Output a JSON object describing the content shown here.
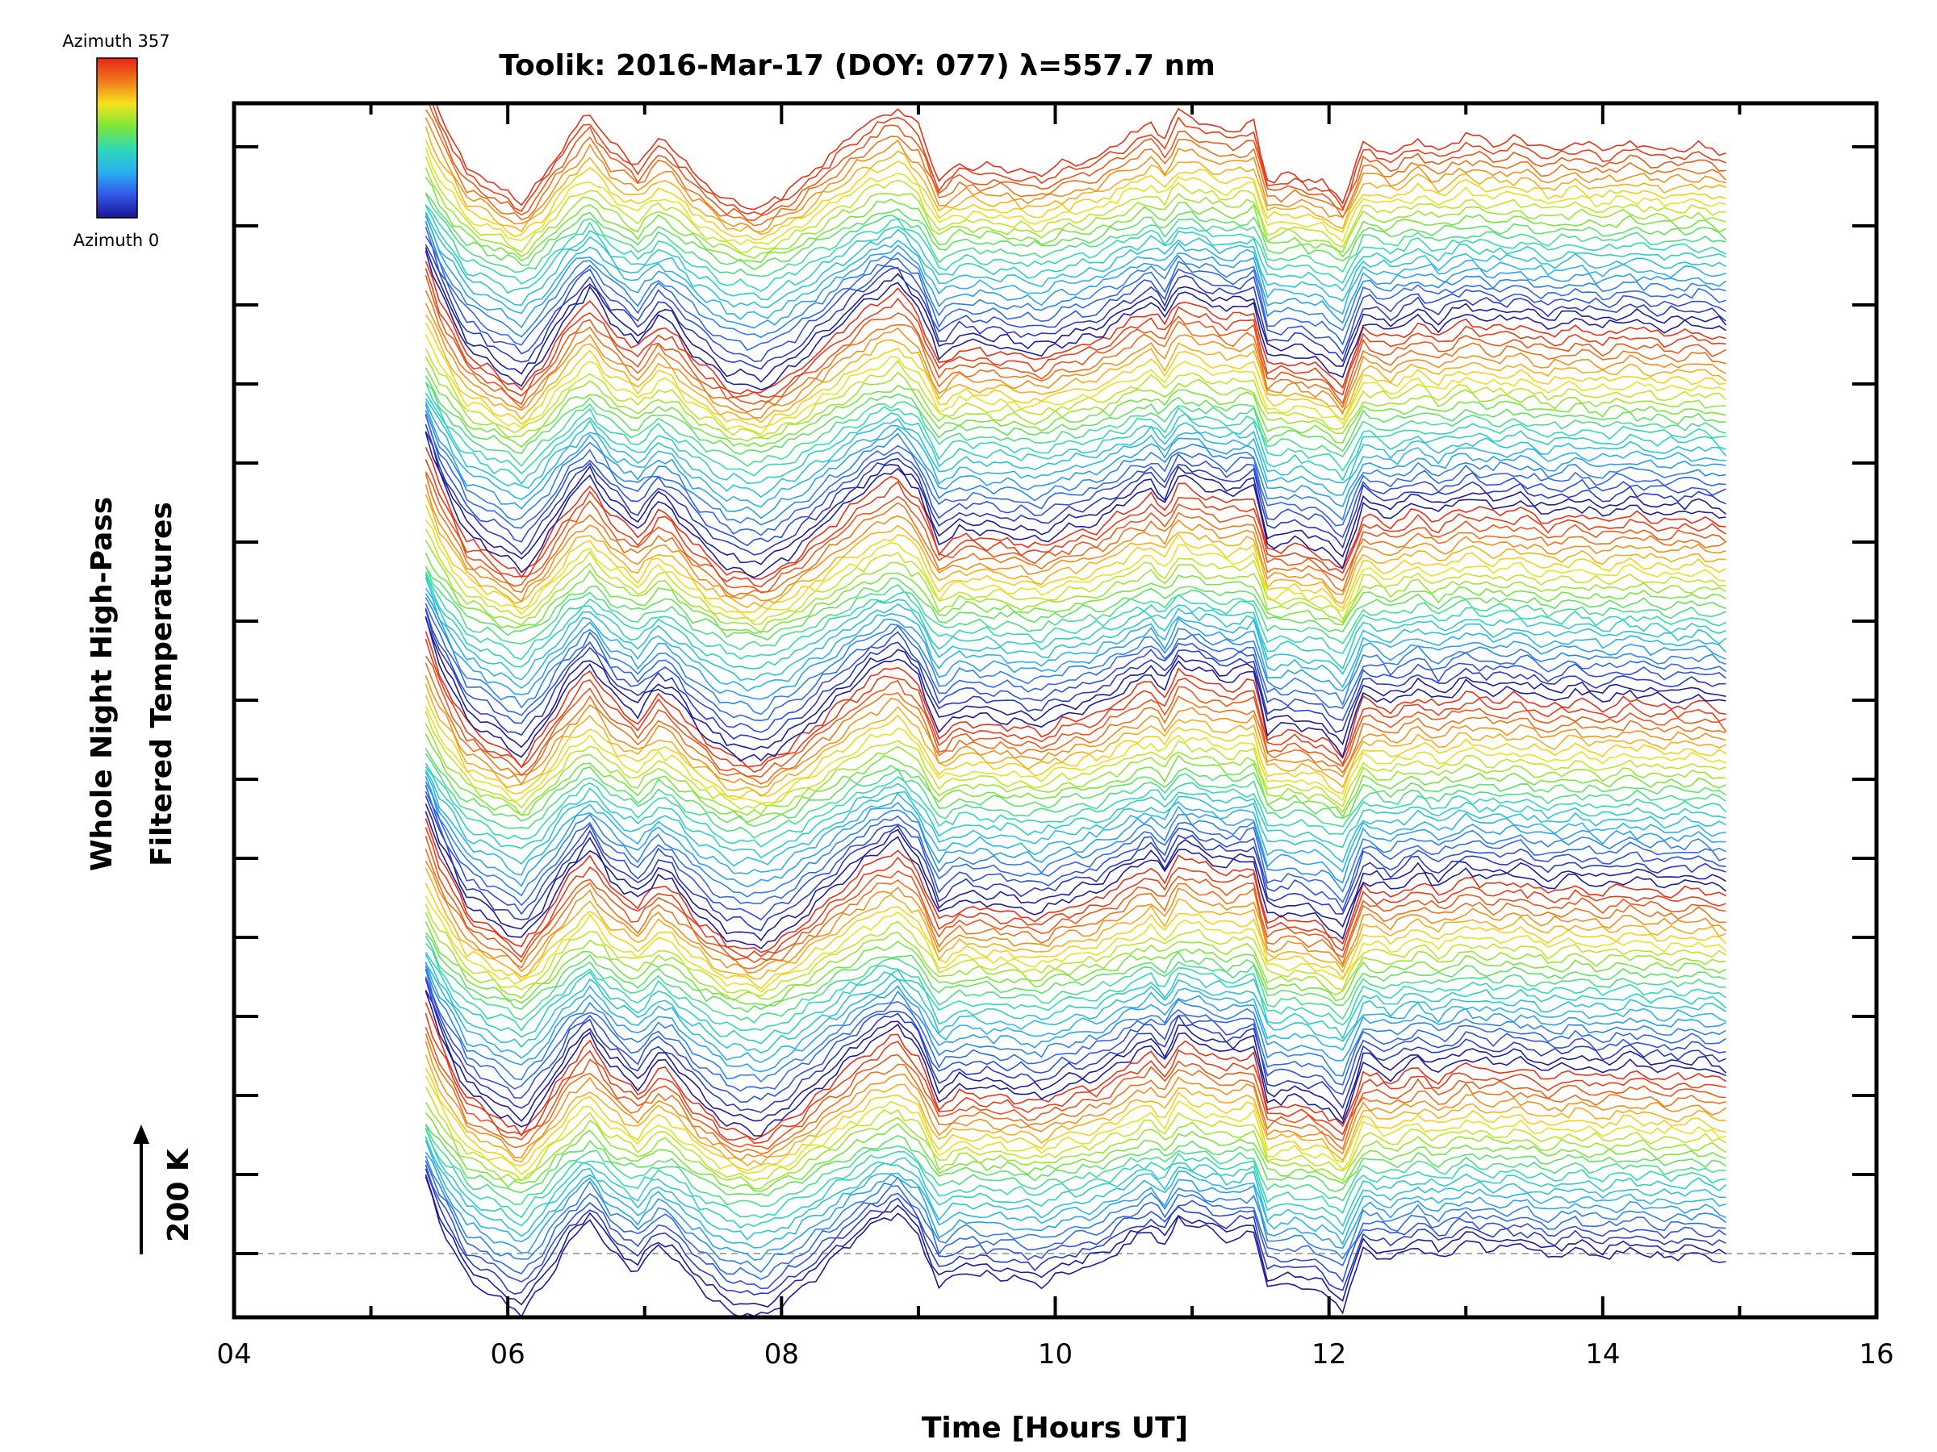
{
  "chart_data": {
    "type": "line",
    "title": "Toolik: 2016-Mar-17 (DOY: 077) λ=557.7 nm",
    "xlabel": "Time [Hours UT]",
    "ylabel_line1": "Whole Night High-Pass",
    "ylabel_line2": "Filtered Temperatures",
    "xlim": [
      4,
      16
    ],
    "x_ticks": [
      "04",
      "06",
      "08",
      "10",
      "12",
      "14",
      "16"
    ],
    "scale_bar_label": "200 K",
    "scale_bar_kelvin": 200,
    "colorbar": {
      "top_label": "Azimuth 357",
      "bottom_label": "Azimuth 0",
      "colors": [
        "#e8241a",
        "#f07a1a",
        "#f6e21e",
        "#7ce63a",
        "#2ed9b8",
        "#28b0f0",
        "#3256e8",
        "#1c1490"
      ]
    },
    "time_range_hours": [
      5.4,
      14.9
    ],
    "stacked_groups": 6,
    "traces_per_group": 24,
    "base_profile": {
      "x": [
        5.4,
        5.5,
        5.7,
        6.1,
        6.25,
        6.45,
        6.6,
        6.75,
        6.95,
        7.1,
        7.2,
        7.35,
        7.6,
        7.85,
        8.1,
        8.4,
        8.65,
        8.85,
        9.0,
        9.15,
        9.3,
        9.6,
        9.9,
        10.05,
        10.3,
        10.55,
        10.7,
        10.8,
        10.9,
        11.05,
        11.25,
        11.45,
        11.55,
        11.75,
        11.95,
        12.1,
        12.25,
        12.45,
        12.65,
        12.8,
        13.0,
        13.2,
        13.4,
        13.6,
        13.8,
        14.0,
        14.2,
        14.45,
        14.7,
        14.9
      ],
      "y": [
        1.0,
        0.45,
        -0.3,
        -0.8,
        -0.45,
        0.15,
        0.45,
        0.05,
        -0.25,
        0.1,
        0.0,
        -0.35,
        -0.75,
        -0.85,
        -0.55,
        -0.05,
        0.35,
        0.55,
        0.25,
        -0.45,
        -0.25,
        -0.3,
        -0.4,
        -0.25,
        -0.15,
        0.15,
        0.3,
        0.1,
        0.45,
        0.35,
        0.2,
        0.3,
        -0.45,
        -0.4,
        -0.5,
        -0.75,
        0.05,
        -0.1,
        0.1,
        -0.05,
        0.15,
        0.05,
        0.1,
        -0.05,
        0.05,
        -0.05,
        0.05,
        -0.05,
        0.0,
        -0.1
      ]
    }
  }
}
